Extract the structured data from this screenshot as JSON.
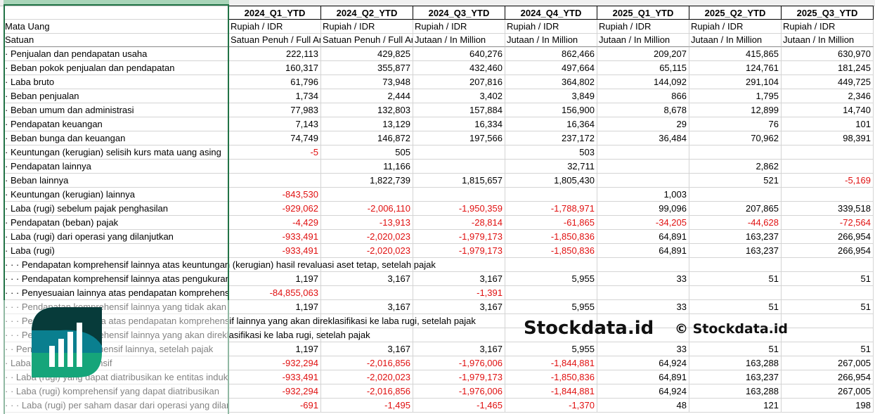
{
  "sheet": {
    "columns": [
      "",
      "2024_Q1_YTD",
      "2024_Q2_YTD",
      "2024_Q3_YTD",
      "2024_Q4_YTD",
      "2025_Q1_YTD",
      "2025_Q2_YTD",
      "2025_Q3_YTD"
    ],
    "currency_row": [
      "Mata Uang",
      "Rupiah / IDR",
      "Rupiah / IDR",
      "Rupiah / IDR",
      "Rupiah / IDR",
      "Rupiah / IDR",
      "Rupiah / IDR",
      "Rupiah / IDR"
    ],
    "unit_row": [
      "Satuan",
      "Satuan Penuh / Full Amount",
      "Satuan Penuh / Full Amount",
      "Jutaan / In Million",
      "Jutaan / In Million",
      "Jutaan / In Million",
      "Jutaan / In Million",
      "Jutaan / In Million"
    ],
    "rows": [
      {
        "label": "· Penjualan dan pendapatan usaha",
        "values": [
          "222,113",
          "429,825",
          "640,276",
          "862,466",
          "209,207",
          "415,865",
          "630,970"
        ]
      },
      {
        "label": "· Beban pokok penjualan dan pendapatan",
        "values": [
          "160,317",
          "355,877",
          "432,460",
          "497,664",
          "65,115",
          "124,761",
          "181,245"
        ]
      },
      {
        "label": "· Laba bruto",
        "values": [
          "61,796",
          "73,948",
          "207,816",
          "364,802",
          "144,092",
          "291,104",
          "449,725"
        ]
      },
      {
        "label": "· Beban penjualan",
        "values": [
          "1,734",
          "2,444",
          "3,402",
          "3,849",
          "866",
          "1,795",
          "2,346"
        ]
      },
      {
        "label": "· Beban umum dan administrasi",
        "values": [
          "77,983",
          "132,803",
          "157,884",
          "156,900",
          "8,678",
          "12,899",
          "14,740"
        ]
      },
      {
        "label": "· Pendapatan keuangan",
        "values": [
          "7,143",
          "13,129",
          "16,334",
          "16,364",
          "29",
          "76",
          "101"
        ]
      },
      {
        "label": "· Beban bunga dan keuangan",
        "values": [
          "74,749",
          "146,872",
          "197,566",
          "237,172",
          "36,484",
          "70,962",
          "98,391"
        ]
      },
      {
        "label": "· Keuntungan (kerugian) selisih kurs mata uang asing",
        "values": [
          "-5",
          "505",
          "",
          "503",
          "",
          "",
          ""
        ]
      },
      {
        "label": "· Pendapatan lainnya",
        "values": [
          "",
          "11,166",
          "",
          "32,711",
          "",
          "2,862",
          ""
        ]
      },
      {
        "label": "· Beban lainnya",
        "values": [
          "",
          "1,822,739",
          "1,815,657",
          "1,805,430",
          "",
          "521",
          "-5,169"
        ]
      },
      {
        "label": "· Keuntungan (kerugian) lainnya",
        "values": [
          "-843,530",
          "",
          "",
          "",
          "1,003",
          "",
          ""
        ]
      },
      {
        "label": "· Laba (rugi) sebelum pajak penghasilan",
        "values": [
          "-929,062",
          "-2,006,110",
          "-1,950,359",
          "-1,788,971",
          "99,096",
          "207,865",
          "339,518"
        ]
      },
      {
        "label": "· Pendapatan (beban) pajak",
        "values": [
          "-4,429",
          "-13,913",
          "-28,814",
          "-61,865",
          "-34,205",
          "-44,628",
          "-72,564"
        ]
      },
      {
        "label": "· Laba (rugi) dari operasi yang dilanjutkan",
        "values": [
          "-933,491",
          "-2,020,023",
          "-1,979,173",
          "-1,850,836",
          "64,891",
          "163,237",
          "266,954"
        ]
      },
      {
        "label": "· Laba (rugi)",
        "values": [
          "-933,491",
          "-2,020,023",
          "-1,979,173",
          "-1,850,836",
          "64,891",
          "163,237",
          "266,954"
        ]
      },
      {
        "label": "· · · Pendapatan komprehensif lainnya atas keuntungan (kerugian) hasil revaluasi aset tetap, setelah pajak",
        "values": [
          "",
          "",
          "",
          "",
          "",
          "",
          ""
        ],
        "spill": true
      },
      {
        "label": "· · · Pendapatan komprehensif lainnya atas pengukuran kembali",
        "values": [
          "1,197",
          "3,167",
          "3,167",
          "5,955",
          "33",
          "51",
          "51"
        ]
      },
      {
        "label": "· · · Penyesuaian lainnya atas pendapatan komprehensif",
        "values": [
          "-84,855,063",
          "",
          "-1,391",
          "",
          "",
          "",
          ""
        ]
      },
      {
        "label": "· · · Pendapatan komprehensif lainnya yang tidak akan direklasifikasi",
        "values": [
          "1,197",
          "3,167",
          "3,167",
          "5,955",
          "33",
          "51",
          "51"
        ]
      },
      {
        "label": "· · · Penyesuaian lainnya atas pendapatan komprehensif lainnya yang akan direklasifikasi ke laba rugi, setelah pajak",
        "values": [
          "",
          "",
          "",
          "",
          "",
          "",
          ""
        ],
        "spill": true
      },
      {
        "label": "· · · Pendapatan komprehensif lainnya yang akan direklasifikasi ke laba rugi, setelah pajak",
        "values": [
          "",
          "",
          "",
          "",
          "",
          "",
          ""
        ],
        "spill": true
      },
      {
        "label": "· · Pendapatan komprehensif lainnya, setelah pajak",
        "values": [
          "1,197",
          "3,167",
          "3,167",
          "5,955",
          "33",
          "51",
          "51"
        ]
      },
      {
        "label": "· Laba (rugi) komprehensif",
        "values": [
          "-932,294",
          "-2,016,856",
          "-1,976,006",
          "-1,844,881",
          "64,924",
          "163,288",
          "267,005"
        ]
      },
      {
        "label": "· · Laba (rugi) yang dapat diatribusikan ke entitas induk",
        "values": [
          "-933,491",
          "-2,020,023",
          "-1,979,173",
          "-1,850,836",
          "64,891",
          "163,237",
          "266,954"
        ]
      },
      {
        "label": "· · Laba (rugi) komprehensif yang dapat diatribusikan",
        "values": [
          "-932,294",
          "-2,016,856",
          "-1,976,006",
          "-1,844,881",
          "64,924",
          "163,288",
          "267,005"
        ]
      },
      {
        "label": "· · · Laba (rugi) per saham dasar dari operasi yang dilanjutkan",
        "values": [
          "-691",
          "-1,495",
          "-1,465",
          "-1,370",
          "48",
          "121",
          "198"
        ]
      }
    ]
  },
  "watermark": {
    "logo_icon": "bar-chart-leaf-logo",
    "copyright": "© Stockdata.id",
    "brand": "Stockdata.id"
  },
  "colors": {
    "negative": "#e01010",
    "selection": "#217346",
    "logo_dark": "#073b3a",
    "logo_teal": "#0a7f8f",
    "logo_green": "#16a57a"
  }
}
